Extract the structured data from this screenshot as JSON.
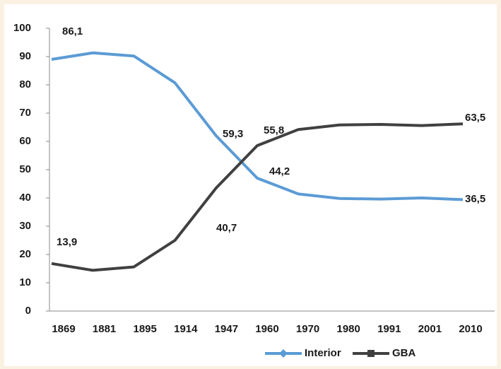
{
  "chart_data": {
    "type": "line",
    "categories": [
      "1869",
      "1881",
      "1895",
      "1914",
      "1947",
      "1960",
      "1970",
      "1980",
      "1991",
      "2001",
      "2010"
    ],
    "series": [
      {
        "name": "Interior",
        "color": "#5b9bd5",
        "marker": "diamond",
        "values": [
          89,
          91.3,
          90.2,
          80.7,
          62,
          47,
          41.4,
          39.8,
          39.6,
          40,
          39.4
        ]
      },
      {
        "name": "GBA",
        "color": "#404040",
        "marker": "square",
        "values": [
          16.8,
          14.4,
          15.6,
          25,
          43.5,
          58.5,
          64.2,
          65.8,
          66,
          65.6,
          66.2
        ]
      }
    ],
    "annotations": [
      "86,1",
      "13,9",
      "59,3",
      "40,7",
      "55,8",
      "44,2",
      "63,5",
      "36,5"
    ],
    "ylim": [
      0,
      100
    ],
    "yticks": [
      0,
      10,
      20,
      30,
      40,
      50,
      60,
      70,
      80,
      90,
      100
    ],
    "legend": "bottom"
  }
}
